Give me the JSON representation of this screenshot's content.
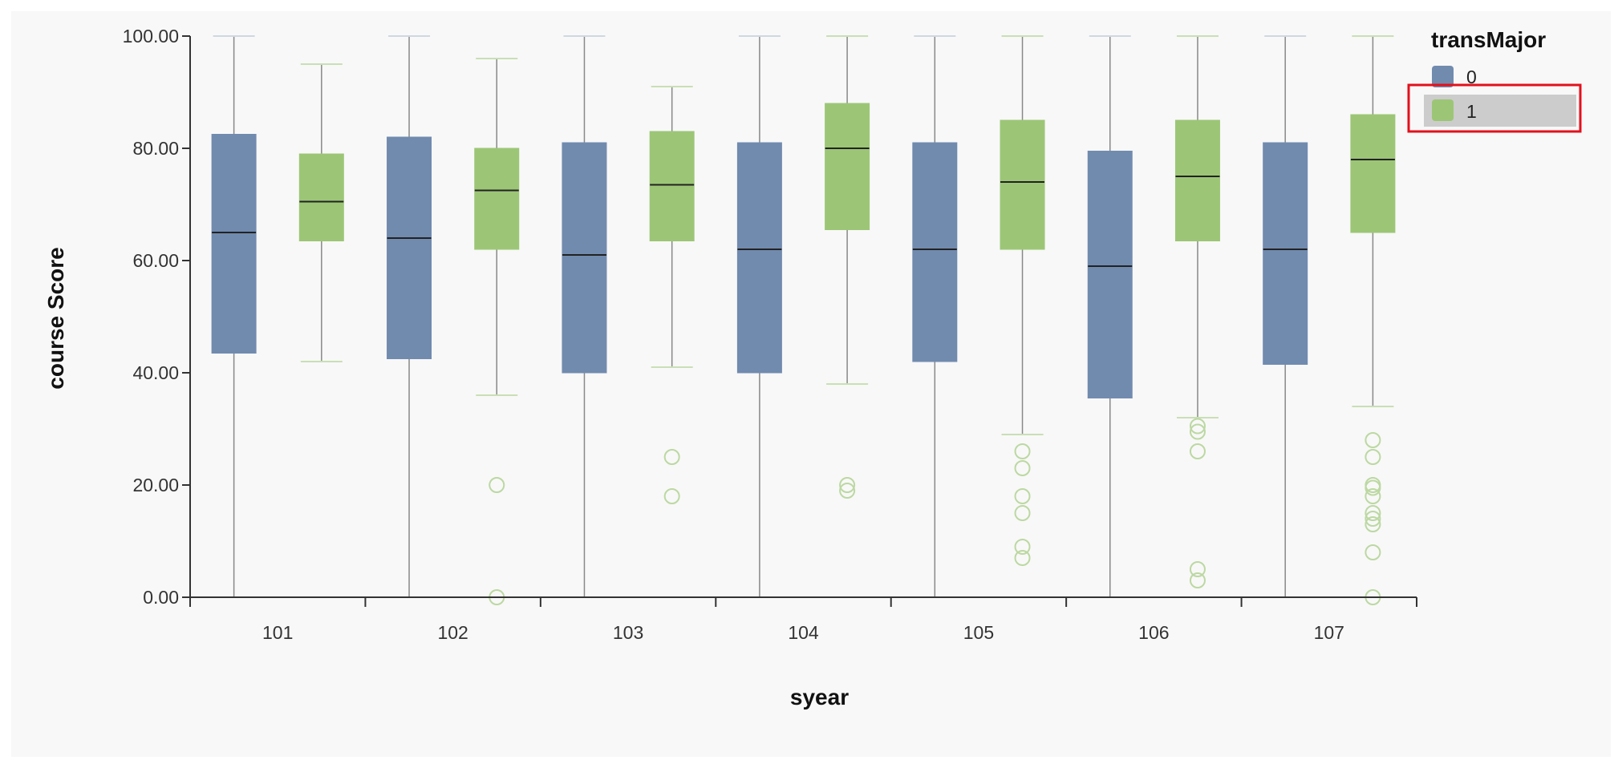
{
  "colors": {
    "series_0": "#718baf",
    "series_1": "#9cc676",
    "highlight": "#e3101b",
    "legend_hover_bg": "#cccccc",
    "axis": "#333333"
  },
  "chart_data": {
    "type": "boxplot",
    "xlabel": "syear",
    "ylabel": "course Score",
    "ylim": [
      0,
      100
    ],
    "y_ticks": [
      "0.00",
      "20.00",
      "40.00",
      "60.00",
      "80.00",
      "100.00"
    ],
    "y_tick_values": [
      0,
      20,
      40,
      60,
      80,
      100
    ],
    "categories": [
      "101",
      "102",
      "103",
      "104",
      "105",
      "106",
      "107"
    ],
    "legend": {
      "title": "transMajor",
      "placement": "top-right",
      "highlighted_entry": "1"
    },
    "series": [
      {
        "name": "0",
        "boxes": [
          {
            "min": 0,
            "q1": 43.5,
            "median": 65,
            "q3": 82.5,
            "max": 100,
            "outliers": []
          },
          {
            "min": 0,
            "q1": 42.5,
            "median": 64,
            "q3": 82,
            "max": 100,
            "outliers": []
          },
          {
            "min": 0,
            "q1": 40,
            "median": 61,
            "q3": 81,
            "max": 100,
            "outliers": []
          },
          {
            "min": 0,
            "q1": 40,
            "median": 62,
            "q3": 81,
            "max": 100,
            "outliers": []
          },
          {
            "min": 0,
            "q1": 42,
            "median": 62,
            "q3": 81,
            "max": 100,
            "outliers": []
          },
          {
            "min": 0,
            "q1": 35.5,
            "median": 59,
            "q3": 79.5,
            "max": 100,
            "outliers": []
          },
          {
            "min": 0,
            "q1": 41.5,
            "median": 62,
            "q3": 81,
            "max": 100,
            "outliers": []
          }
        ]
      },
      {
        "name": "1",
        "boxes": [
          {
            "min": 42,
            "q1": 63.5,
            "median": 70.5,
            "q3": 79,
            "max": 95,
            "outliers": []
          },
          {
            "min": 36,
            "q1": 62,
            "median": 72.5,
            "q3": 80,
            "max": 96,
            "outliers": [
              20,
              0
            ]
          },
          {
            "min": 41,
            "q1": 63.5,
            "median": 73.5,
            "q3": 83,
            "max": 91,
            "outliers": [
              25,
              18
            ]
          },
          {
            "min": 38,
            "q1": 65.5,
            "median": 80,
            "q3": 88,
            "max": 100,
            "outliers": [
              20,
              19
            ]
          },
          {
            "min": 29,
            "q1": 62,
            "median": 74,
            "q3": 85,
            "max": 100,
            "outliers": [
              26,
              23,
              18,
              15,
              9,
              7
            ]
          },
          {
            "min": 32,
            "q1": 63.5,
            "median": 75,
            "q3": 85,
            "max": 100,
            "outliers": [
              30.5,
              29.5,
              26,
              5,
              3
            ]
          },
          {
            "min": 34,
            "q1": 65,
            "median": 78,
            "q3": 86,
            "max": 100,
            "outliers": [
              28,
              25,
              20,
              19.5,
              18,
              15,
              14,
              13,
              8,
              0
            ]
          }
        ]
      }
    ]
  }
}
